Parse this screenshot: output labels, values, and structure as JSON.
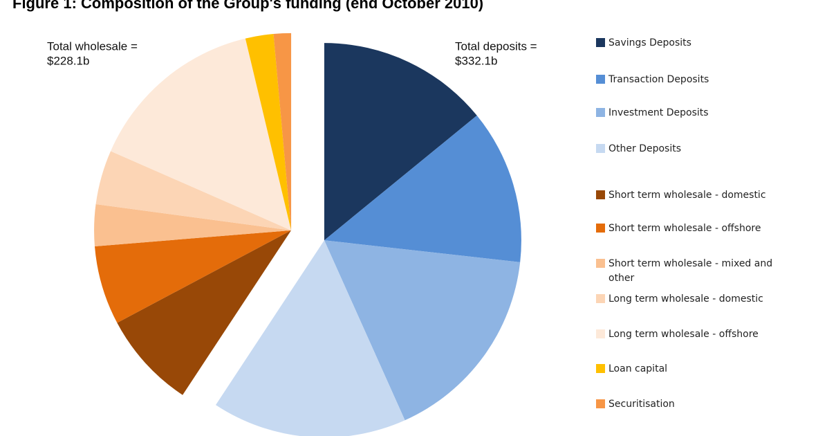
{
  "chart_data": {
    "type": "pie",
    "title": "Figure 1: Composition of the Group's funding (end October 2010)",
    "categories": [
      "Savings Deposits",
      "Transaction Deposits",
      "Investment Deposits",
      "Other Deposits",
      "Short term wholesale - domestic",
      "Short term wholesale - offshore",
      "Short term wholesale - mixed and other",
      "Long term wholesale - domestic",
      "Long term wholesale - offshore",
      "Loan capital",
      "Securitisation"
    ],
    "values": [
      79.0,
      71.0,
      92.5,
      89.6,
      44.5,
      36.3,
      19.1,
      25.0,
      82.3,
      12.9,
      8.0
    ],
    "colors": [
      "#1b375e",
      "#558ed5",
      "#8eb4e3",
      "#c6d9f1",
      "#984807",
      "#e46c0a",
      "#fac090",
      "#fcd5b5",
      "#fde9d9",
      "#ffc000",
      "#f79646"
    ],
    "annotations": [
      "Total wholesale =",
      "$228.1b",
      "Total deposits =",
      "$332.1b"
    ]
  }
}
